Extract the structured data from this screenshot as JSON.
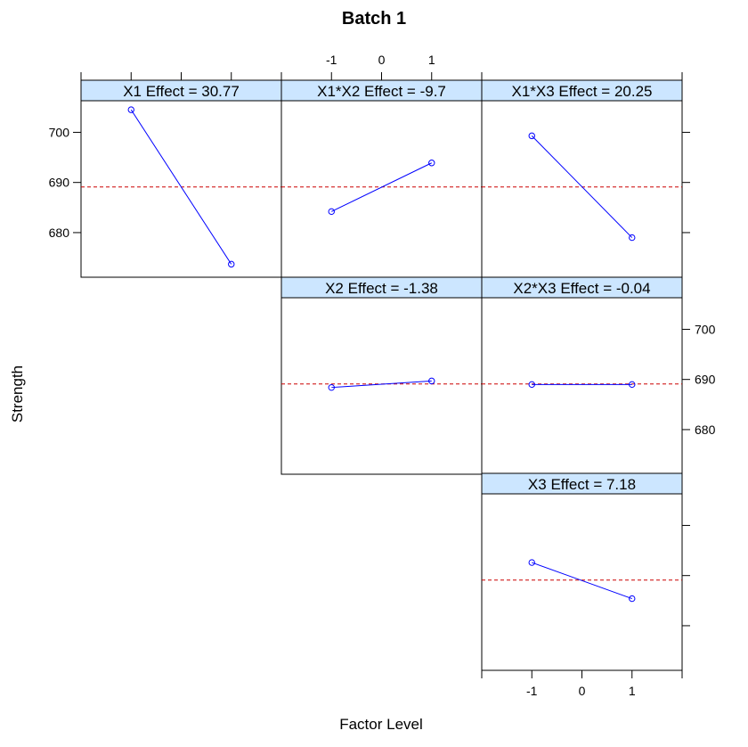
{
  "chart_data": {
    "type": "line",
    "title": "Batch 1",
    "xlabel": "Factor Level",
    "ylabel": "Strength",
    "x_ticks": [
      "-1",
      "0",
      "1"
    ],
    "y_ticks": [
      "680",
      "690",
      "700"
    ],
    "xlim": [
      -2,
      2
    ],
    "ylim": [
      671.1,
      706.3
    ],
    "grand_mean": 689.1,
    "line_color": "#0000FF",
    "reference_line_color": "#CC0000",
    "strip_color": "#CCE6FF",
    "panels": [
      {
        "strip": "X1 Effect = 30.77",
        "row": 0,
        "col": 0,
        "x": [
          -1,
          1
        ],
        "y": [
          704.5,
          673.7
        ]
      },
      {
        "strip": "X1*X2 Effect = -9.7",
        "row": 0,
        "col": 1,
        "x": [
          -1,
          1
        ],
        "y": [
          684.2,
          693.9
        ]
      },
      {
        "strip": "X1*X3 Effect = 20.25",
        "row": 0,
        "col": 2,
        "x": [
          -1,
          1
        ],
        "y": [
          699.3,
          679.0
        ]
      },
      {
        "strip": "X2 Effect = -1.38",
        "row": 1,
        "col": 1,
        "x": [
          -1,
          1
        ],
        "y": [
          688.4,
          689.7
        ]
      },
      {
        "strip": "X2*X3 Effect = -0.04",
        "row": 1,
        "col": 2,
        "x": [
          -1,
          1
        ],
        "y": [
          689.0,
          689.0
        ]
      },
      {
        "strip": "X3 Effect = 7.18",
        "row": 2,
        "col": 2,
        "x": [
          -1,
          1
        ],
        "y": [
          692.6,
          685.4
        ]
      }
    ]
  }
}
